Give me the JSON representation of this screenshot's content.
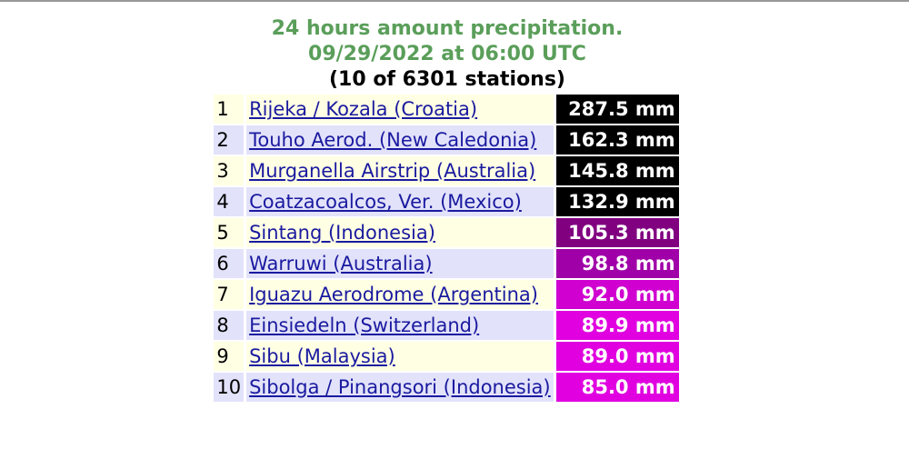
{
  "header": {
    "title": "24 hours amount precipitation.",
    "subtitle": "09/29/2022 at 06:00 UTC",
    "count": "(10 of 6301 stations)"
  },
  "table": {
    "rows": [
      {
        "rank": "1",
        "station": "Rijeka / Kozala (Croatia)",
        "amount": "287.5 mm",
        "color": "#000000"
      },
      {
        "rank": "2",
        "station": "Touho Aerod. (New Caledonia)",
        "amount": "162.3 mm",
        "color": "#000000"
      },
      {
        "rank": "3",
        "station": "Murganella Airstrip (Australia)",
        "amount": "145.8 mm",
        "color": "#000000"
      },
      {
        "rank": "4",
        "station": "Coatzacoalcos, Ver. (Mexico)",
        "amount": "132.9 mm",
        "color": "#000000"
      },
      {
        "rank": "5",
        "station": "Sintang (Indonesia)",
        "amount": "105.3 mm",
        "color": "#800080"
      },
      {
        "rank": "6",
        "station": "Warruwi (Australia)",
        "amount": "98.8 mm",
        "color": "#a000a8"
      },
      {
        "rank": "7",
        "station": "Iguazu Aerodrome (Argentina)",
        "amount": "92.0 mm",
        "color": "#d000d0"
      },
      {
        "rank": "8",
        "station": "Einsiedeln (Switzerland)",
        "amount": "89.9 mm",
        "color": "#e000e0"
      },
      {
        "rank": "9",
        "station": "Sibu (Malaysia)",
        "amount": "89.0 mm",
        "color": "#e000e0"
      },
      {
        "rank": "10",
        "station": "Sibolga / Pinangsori (Indonesia)",
        "amount": "85.0 mm",
        "color": "#e000e0"
      }
    ]
  }
}
